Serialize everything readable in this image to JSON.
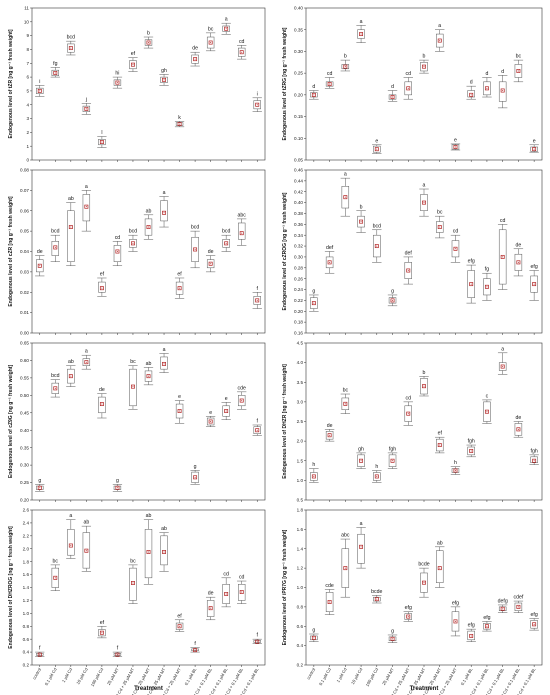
{
  "figure": {
    "xlabel": "Treatment",
    "treatments": [
      "control",
      "0.1 µM Cd",
      "1 µM Cd",
      "10 µM Cd",
      "100 µM Cd",
      "25 µM MT",
      "0.1 µM Cd + 25 µM MT",
      "1 µM Cd + 25 µM MT",
      "10 µM Cd + 25 µM MT",
      "100 µM Cd + 25 µM MT",
      "0.1 µM BL",
      "0.1 µM Cd + 0.1 µM BL",
      "1 µM Cd + 0.1 µM BL",
      "10 µM Cd + 0.1 µM BL",
      "100 µM Cd + 0.1 µM BL"
    ],
    "colors": {
      "box": "#555555",
      "marker": "#b22222",
      "axis": "#333333",
      "grid": "#e3e3e3"
    }
  },
  "chart_data": [
    {
      "type": "box",
      "ylabel": "Endogenous level of tZR [ng g⁻¹ fresh weight]",
      "ylim": [
        0,
        11
      ],
      "yticks": [
        0,
        1,
        2,
        3,
        4,
        5,
        6,
        7,
        8,
        9,
        10,
        11
      ],
      "means": [
        5.0,
        6.3,
        8.1,
        3.7,
        1.3,
        5.6,
        6.9,
        8.5,
        5.8,
        2.6,
        7.3,
        8.5,
        9.5,
        7.8,
        4.0
      ],
      "se_low": [
        4.8,
        6.1,
        7.8,
        3.5,
        1.1,
        5.4,
        6.6,
        8.3,
        5.6,
        2.5,
        7.0,
        8.1,
        9.3,
        7.5,
        3.7
      ],
      "se_high": [
        5.2,
        6.5,
        8.4,
        3.9,
        1.5,
        5.8,
        7.2,
        8.7,
        6.0,
        2.7,
        7.6,
        8.9,
        9.7,
        8.1,
        4.3
      ],
      "whisker_low": [
        4.6,
        6.0,
        7.6,
        3.3,
        0.9,
        5.2,
        6.4,
        8.1,
        5.4,
        2.4,
        6.8,
        7.9,
        9.1,
        7.3,
        3.5
      ],
      "whisker_high": [
        5.4,
        6.7,
        8.6,
        4.1,
        1.7,
        6.0,
        7.4,
        8.9,
        6.2,
        2.8,
        7.8,
        9.2,
        9.9,
        8.3,
        4.5
      ],
      "letters": [
        "i",
        "fg",
        "bcd",
        "j",
        "l",
        "hi",
        "ef",
        "b",
        "gh",
        "k",
        "de",
        "bc",
        "a",
        "cd",
        "i"
      ]
    },
    {
      "type": "box",
      "ylabel": "Endogenous level of tZRG [ng g⁻¹ fresh weight]",
      "ylim": [
        0.05,
        0.4
      ],
      "yticks": [
        0.05,
        0.1,
        0.15,
        0.2,
        0.25,
        0.3,
        0.35,
        0.4
      ],
      "means": [
        0.2,
        0.225,
        0.265,
        0.34,
        0.075,
        0.195,
        0.215,
        0.265,
        0.325,
        0.08,
        0.2,
        0.215,
        0.21,
        0.255,
        0.075
      ],
      "se_low": [
        0.195,
        0.22,
        0.26,
        0.33,
        0.068,
        0.19,
        0.2,
        0.255,
        0.31,
        0.075,
        0.195,
        0.2,
        0.185,
        0.24,
        0.07
      ],
      "se_high": [
        0.205,
        0.23,
        0.27,
        0.35,
        0.082,
        0.2,
        0.23,
        0.275,
        0.34,
        0.085,
        0.21,
        0.23,
        0.23,
        0.27,
        0.08
      ],
      "whisker_low": [
        0.19,
        0.215,
        0.255,
        0.32,
        0.065,
        0.185,
        0.19,
        0.25,
        0.3,
        0.073,
        0.19,
        0.195,
        0.17,
        0.23,
        0.068
      ],
      "whisker_high": [
        0.21,
        0.24,
        0.28,
        0.36,
        0.085,
        0.21,
        0.24,
        0.28,
        0.35,
        0.087,
        0.22,
        0.24,
        0.245,
        0.28,
        0.085
      ],
      "letters": [
        "d",
        "cd",
        "b",
        "a",
        "e",
        "d",
        "cd",
        "b",
        "a",
        "e",
        "d",
        "d",
        "d",
        "bc",
        "e"
      ]
    },
    {
      "type": "box",
      "ylabel": "Endogenous level of cZR [ng g⁻¹ fresh weight]",
      "ylim": [
        0,
        0.08
      ],
      "yticks": [
        0,
        0.01,
        0.02,
        0.03,
        0.04,
        0.05,
        0.06,
        0.07,
        0.08
      ],
      "means": [
        0.033,
        0.042,
        0.052,
        0.062,
        0.022,
        0.04,
        0.044,
        0.052,
        0.059,
        0.022,
        0.041,
        0.034,
        0.044,
        0.049,
        0.016
      ],
      "se_low": [
        0.03,
        0.038,
        0.035,
        0.055,
        0.02,
        0.035,
        0.042,
        0.048,
        0.055,
        0.019,
        0.035,
        0.032,
        0.042,
        0.046,
        0.014
      ],
      "se_high": [
        0.036,
        0.045,
        0.06,
        0.068,
        0.025,
        0.043,
        0.046,
        0.056,
        0.065,
        0.025,
        0.047,
        0.036,
        0.046,
        0.054,
        0.018
      ],
      "whisker_low": [
        0.028,
        0.035,
        0.033,
        0.05,
        0.018,
        0.033,
        0.04,
        0.046,
        0.052,
        0.017,
        0.032,
        0.03,
        0.04,
        0.043,
        0.012
      ],
      "whisker_high": [
        0.038,
        0.048,
        0.064,
        0.07,
        0.027,
        0.045,
        0.048,
        0.058,
        0.067,
        0.027,
        0.05,
        0.038,
        0.048,
        0.056,
        0.02
      ],
      "letters": [
        "de",
        "bcd",
        "ab",
        "a",
        "ef",
        "cd",
        "bcd",
        "ab",
        "a",
        "ef",
        "bcd",
        "de",
        "bcd",
        "abc",
        "f"
      ]
    },
    {
      "type": "box",
      "ylabel": "Endogenous level of cZROG [ng g⁻¹ fresh weight]",
      "ylim": [
        0.16,
        0.46
      ],
      "yticks": [
        0.16,
        0.18,
        0.2,
        0.22,
        0.24,
        0.26,
        0.28,
        0.3,
        0.32,
        0.34,
        0.36,
        0.38,
        0.4,
        0.42,
        0.44,
        0.46
      ],
      "means": [
        0.215,
        0.29,
        0.41,
        0.365,
        0.32,
        0.22,
        0.275,
        0.4,
        0.355,
        0.315,
        0.25,
        0.245,
        0.3,
        0.29,
        0.25
      ],
      "se_low": [
        0.205,
        0.28,
        0.39,
        0.355,
        0.3,
        0.215,
        0.26,
        0.385,
        0.345,
        0.3,
        0.225,
        0.23,
        0.25,
        0.275,
        0.235
      ],
      "se_high": [
        0.225,
        0.3,
        0.43,
        0.375,
        0.34,
        0.225,
        0.29,
        0.415,
        0.365,
        0.33,
        0.275,
        0.26,
        0.35,
        0.305,
        0.265
      ],
      "whisker_low": [
        0.2,
        0.27,
        0.375,
        0.345,
        0.29,
        0.21,
        0.25,
        0.375,
        0.335,
        0.29,
        0.215,
        0.22,
        0.24,
        0.265,
        0.22
      ],
      "whisker_high": [
        0.23,
        0.31,
        0.445,
        0.385,
        0.35,
        0.23,
        0.3,
        0.425,
        0.375,
        0.34,
        0.285,
        0.27,
        0.36,
        0.315,
        0.275
      ],
      "letters": [
        "g",
        "def",
        "a",
        "b",
        "bcd",
        "g",
        "def",
        "a",
        "bc",
        "cd",
        "efg",
        "fg",
        "cd",
        "de",
        "efg"
      ]
    },
    {
      "type": "box",
      "ylabel": "Endogenous level of cZ9G [ng g⁻¹ fresh weight]",
      "ylim": [
        0.2,
        0.65
      ],
      "yticks": [
        0.2,
        0.25,
        0.3,
        0.35,
        0.4,
        0.45,
        0.5,
        0.55,
        0.6,
        0.65
      ],
      "means": [
        0.235,
        0.52,
        0.555,
        0.595,
        0.475,
        0.235,
        0.525,
        0.555,
        0.59,
        0.455,
        0.265,
        0.425,
        0.455,
        0.485,
        0.4
      ],
      "se_low": [
        0.23,
        0.505,
        0.535,
        0.585,
        0.45,
        0.23,
        0.47,
        0.54,
        0.575,
        0.435,
        0.25,
        0.415,
        0.44,
        0.47,
        0.39
      ],
      "se_high": [
        0.24,
        0.535,
        0.575,
        0.605,
        0.495,
        0.24,
        0.575,
        0.57,
        0.61,
        0.475,
        0.28,
        0.435,
        0.47,
        0.5,
        0.41
      ],
      "whisker_low": [
        0.225,
        0.495,
        0.525,
        0.575,
        0.435,
        0.225,
        0.46,
        0.53,
        0.565,
        0.42,
        0.245,
        0.41,
        0.43,
        0.46,
        0.385
      ],
      "whisker_high": [
        0.245,
        0.545,
        0.585,
        0.615,
        0.505,
        0.245,
        0.585,
        0.58,
        0.62,
        0.485,
        0.285,
        0.44,
        0.48,
        0.51,
        0.415
      ],
      "letters": [
        "g",
        "bcd",
        "ab",
        "a",
        "de",
        "g",
        "bc",
        "ab",
        "a",
        "e",
        "g",
        "e",
        "e",
        "cde",
        "f"
      ]
    },
    {
      "type": "box",
      "ylabel": "Endogenous level of DHZR [ng g⁻¹ fresh weight]",
      "ylim": [
        0.5,
        4.5
      ],
      "yticks": [
        0.5,
        1.0,
        1.5,
        2.0,
        2.5,
        3.0,
        3.5,
        4.0,
        4.5
      ],
      "means": [
        1.1,
        2.15,
        2.95,
        1.5,
        1.1,
        1.5,
        2.7,
        3.4,
        1.9,
        1.25,
        1.75,
        2.75,
        3.9,
        2.3,
        1.5
      ],
      "se_low": [
        1.0,
        2.05,
        2.8,
        1.35,
        1.0,
        1.35,
        2.5,
        3.2,
        1.75,
        1.2,
        1.65,
        2.5,
        3.8,
        2.15,
        1.45
      ],
      "se_high": [
        1.2,
        2.25,
        3.1,
        1.65,
        1.2,
        1.65,
        2.9,
        3.6,
        2.05,
        1.3,
        1.85,
        3.0,
        4.0,
        2.45,
        1.6
      ],
      "whisker_low": [
        0.95,
        2.0,
        2.7,
        1.3,
        0.95,
        1.3,
        2.4,
        3.15,
        1.7,
        1.15,
        1.6,
        2.45,
        3.7,
        2.1,
        1.4
      ],
      "whisker_high": [
        1.3,
        2.3,
        3.2,
        1.7,
        1.25,
        1.7,
        3.0,
        3.65,
        2.1,
        1.35,
        1.9,
        3.05,
        4.25,
        2.5,
        1.65
      ],
      "letters": [
        "h",
        "de",
        "bc",
        "gh",
        "h",
        "fgh",
        "cd",
        "b",
        "ef",
        "h",
        "fgh",
        "c",
        "a",
        "de",
        "fgh"
      ]
    },
    {
      "type": "box",
      "ylabel": "Endogenous level of DHZROG [ng g⁻¹ fresh weight]",
      "ylim": [
        0.2,
        2.6
      ],
      "yticks": [
        0.2,
        0.4,
        0.6,
        0.8,
        1.0,
        1.2,
        1.4,
        1.6,
        1.8,
        2.0,
        2.2,
        2.4,
        2.6
      ],
      "means": [
        0.36,
        1.55,
        2.05,
        1.97,
        0.7,
        0.36,
        1.47,
        1.95,
        1.95,
        0.8,
        0.43,
        1.08,
        1.3,
        1.33,
        0.56
      ],
      "se_low": [
        0.35,
        1.4,
        1.9,
        1.7,
        0.65,
        0.35,
        1.2,
        1.55,
        1.75,
        0.75,
        0.42,
        0.95,
        1.15,
        1.2,
        0.55
      ],
      "se_high": [
        0.38,
        1.7,
        2.3,
        2.25,
        0.75,
        0.38,
        1.7,
        2.3,
        2.2,
        0.85,
        0.45,
        1.2,
        1.45,
        1.45,
        0.58
      ],
      "whisker_low": [
        0.33,
        1.35,
        1.85,
        1.65,
        0.62,
        0.33,
        1.15,
        1.45,
        1.65,
        0.72,
        0.4,
        0.9,
        1.1,
        1.15,
        0.53
      ],
      "whisker_high": [
        0.4,
        1.75,
        2.45,
        2.35,
        0.8,
        0.4,
        1.75,
        2.45,
        2.25,
        0.9,
        0.47,
        1.25,
        1.55,
        1.5,
        0.6
      ],
      "letters": [
        "f",
        "bc",
        "a",
        "ab",
        "ef",
        "f",
        "bc",
        "ab",
        "ab",
        "ef",
        "f",
        "de",
        "cd",
        "cd",
        "f"
      ]
    },
    {
      "type": "box",
      "ylabel": "Endogenous level of iPR7G [ng g⁻¹ fresh weight]",
      "ylim": [
        0.2,
        1.8
      ],
      "yticks": [
        0.2,
        0.4,
        0.6,
        0.8,
        1.0,
        1.2,
        1.4,
        1.6,
        1.8
      ],
      "means": [
        0.48,
        0.85,
        1.2,
        1.42,
        0.88,
        0.47,
        0.7,
        1.05,
        1.2,
        0.65,
        0.5,
        0.6,
        0.78,
        0.8,
        0.62
      ],
      "se_low": [
        0.46,
        0.75,
        1.0,
        1.25,
        0.86,
        0.45,
        0.67,
        0.95,
        1.05,
        0.55,
        0.46,
        0.57,
        0.76,
        0.76,
        0.58
      ],
      "se_high": [
        0.5,
        0.95,
        1.4,
        1.55,
        0.9,
        0.49,
        0.73,
        1.15,
        1.38,
        0.75,
        0.55,
        0.63,
        0.8,
        0.84,
        0.66
      ],
      "whisker_low": [
        0.44,
        0.72,
        0.9,
        1.2,
        0.84,
        0.43,
        0.65,
        0.9,
        1.0,
        0.5,
        0.44,
        0.55,
        0.74,
        0.74,
        0.56
      ],
      "whisker_high": [
        0.52,
        0.98,
        1.5,
        1.62,
        0.92,
        0.51,
        0.75,
        1.2,
        1.42,
        0.8,
        0.57,
        0.65,
        0.82,
        0.86,
        0.68
      ],
      "letters": [
        "g",
        "cde",
        "abc",
        "a",
        "bcde",
        "g",
        "efg",
        "bcde",
        "ab",
        "efg",
        "efg",
        "efg",
        "defg",
        "cdef",
        "efg"
      ]
    }
  ]
}
